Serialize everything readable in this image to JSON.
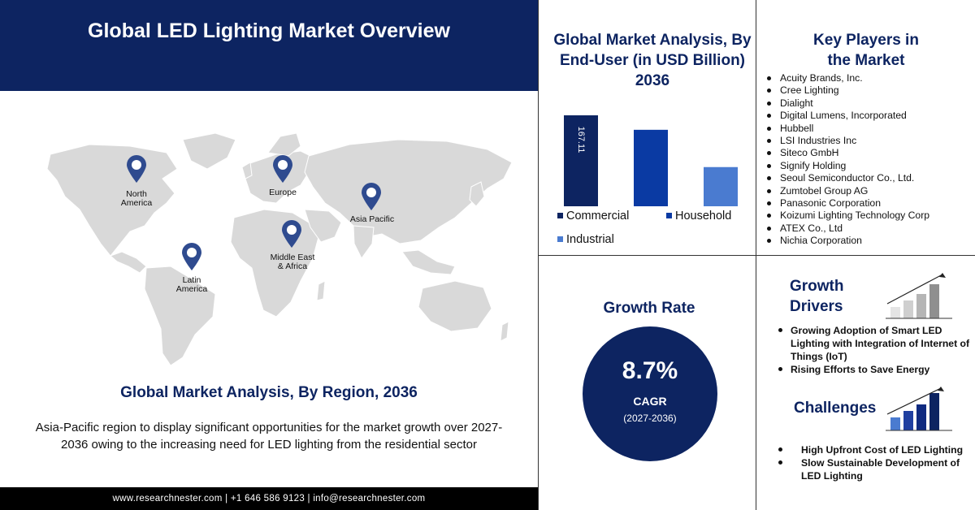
{
  "header": {
    "title": "Global LED Lighting Market Overview"
  },
  "map": {
    "title": "Global Market Analysis, By Region, 2036",
    "description": "Asia-Pacific region to display significant opportunities for the market growth over 2027-2036 owing to the increasing need for LED lighting from the residential sector",
    "regions": [
      {
        "label": "North\nAmerica"
      },
      {
        "label": "Europe"
      },
      {
        "label": "Asia Pacific"
      },
      {
        "label": "Middle East\n& Africa"
      },
      {
        "label": "Latin\nAmerica"
      }
    ],
    "pin_color": "#2f4b8f",
    "land_color": "#d9d9d9"
  },
  "footer": {
    "text": "www.researchnester.com  |  +1 646 586 9123  |  info@researchnester.com"
  },
  "chart_data": {
    "type": "bar",
    "title": "Global Market Analysis, By End-User (in USD Billion) 2036",
    "categories": [
      "Commercial",
      "Household",
      "Industrial"
    ],
    "values": [
      167.11,
      140.5,
      72.0
    ],
    "data_labels": [
      "167.11",
      "",
      ""
    ],
    "colors": [
      "#0d2461",
      "#0a3aa3",
      "#4a7bd0"
    ],
    "legend_position": "bottom",
    "grid": false
  },
  "players": {
    "title": "Key Players in\nthe Market",
    "items": [
      "Acuity Brands, Inc.",
      "Cree Lighting",
      "Dialight",
      "Digital Lumens, Incorporated",
      "Hubbell",
      "LSI Industries Inc",
      "Siteco GmbH",
      "Signify Holding",
      "Seoul Semiconductor Co., Ltd.",
      "Zumtobel Group AG",
      "Panasonic Corporation",
      "Koizumi Lighting Technology Corp",
      "ATEX Co., Ltd",
      "Nichia Corporation"
    ]
  },
  "growth": {
    "title": "Growth Rate",
    "value": "8.7%",
    "label": "CAGR",
    "period": "(2027-2036)",
    "circle_color": "#0d2461"
  },
  "drivers": {
    "title": "Growth\nDrivers",
    "items": [
      "Growing Adoption of Smart LED Lighting with Integration of Internet of Things (IoT)",
      "Rising Efforts to Save Energy"
    ]
  },
  "challenges": {
    "title": "Challenges",
    "items": [
      "High Upfront Cost of LED Lighting",
      "Slow Sustainable Development of LED Lighting"
    ]
  }
}
